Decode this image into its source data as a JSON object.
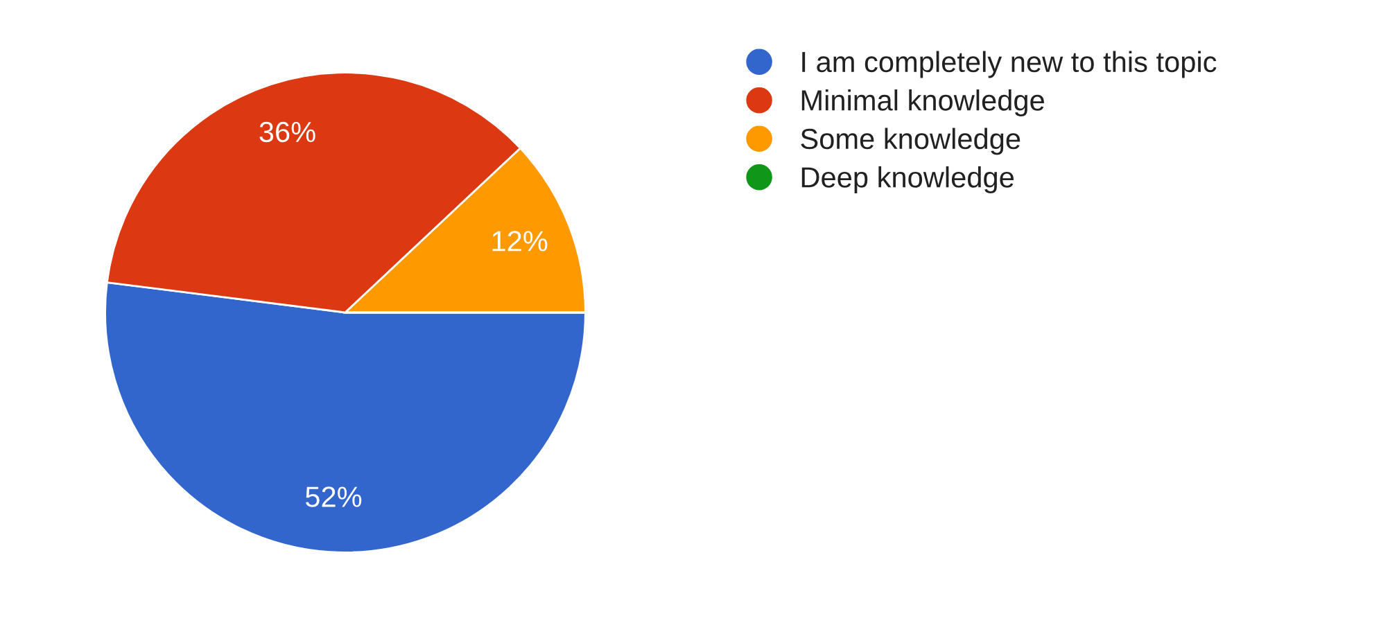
{
  "chart_data": {
    "type": "pie",
    "categories": [
      "I am completely new to this topic",
      "Minimal knowledge",
      "Some knowledge",
      "Deep knowledge"
    ],
    "values": [
      52,
      36,
      12,
      0
    ],
    "colors": [
      "#3366cc",
      "#dc3912",
      "#ff9900",
      "#109618"
    ],
    "value_labels": [
      "52%",
      "36%",
      "12%",
      null
    ],
    "legend": "top right"
  }
}
